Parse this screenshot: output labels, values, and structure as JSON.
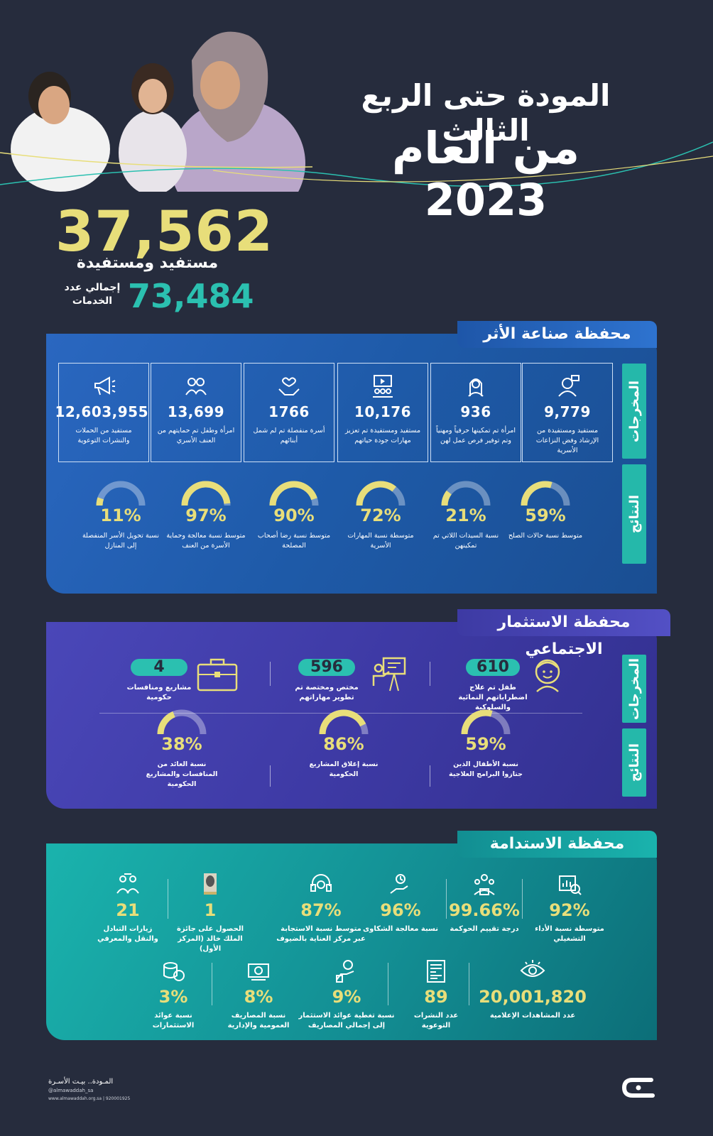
{
  "header": {
    "title_line1": "المودة حتى الربع الثالث",
    "title_line2": "من العام 2023"
  },
  "summary": {
    "beneficiaries_value": "37,562",
    "beneficiaries_label": "مستفيد ومستفيدة",
    "services_value": "73,484",
    "services_label_1": "إجمالي عدد",
    "services_label_2": "الخدمات"
  },
  "side": {
    "outputs": "المخرجات",
    "results": "النتائج"
  },
  "impact": {
    "title": "محفظة صناعة الأثر",
    "outputs": [
      {
        "value": "9,779",
        "label": "مستفيد ومستفيدة من الإرشاد وفض النزاعات الأسرية",
        "icon": "counselor-icon"
      },
      {
        "value": "936",
        "label": "امرأة تم تمكينها حرفياً ومهنياً وتم توفير فرص عمل لهن",
        "icon": "woman-icon"
      },
      {
        "value": "10,176",
        "label": "مستفيد ومستفيدة تم تعزيز مهارات جودة حياتهم",
        "icon": "training-icon"
      },
      {
        "value": "1766",
        "label": "أسرة منفصلة تم لم شمل أبنائهم",
        "icon": "hands-heart-icon"
      },
      {
        "value": "13,699",
        "label": "امرأة وطفل تم حمايتهم من العنف الأسري",
        "icon": "protection-icon"
      },
      {
        "value": "12,603,955",
        "label": "مستفيد من الحملات والنشرات التوعوية",
        "icon": "megaphone-icon"
      }
    ],
    "results": [
      {
        "value": "59%",
        "pct": 59,
        "label": "متوسط نسبة حالات الصلح"
      },
      {
        "value": "21%",
        "pct": 21,
        "label": "نسبة السيدات اللاتي تم تمكينهن"
      },
      {
        "value": "72%",
        "pct": 72,
        "label": "متوسطة نسبة المهارات الأسرية"
      },
      {
        "value": "90%",
        "pct": 90,
        "label": "متوسط نسبة رضا أصحاب المصلحة"
      },
      {
        "value": "97%",
        "pct": 97,
        "label": "متوسط نسبة معالجة وحماية الأسرة من العنف"
      },
      {
        "value": "11%",
        "pct": 11,
        "label": "نسبة تحويل الأسر المنفصلة إلى المنازل"
      }
    ]
  },
  "social": {
    "title": "محفظة الاستثمار الاجتماعي",
    "outputs": [
      {
        "value": "610",
        "label": "طفل تم علاج اضطراباتهم النمائية والسلوكية",
        "icon": "child-icon"
      },
      {
        "value": "596",
        "label": "مختص ومختصة تم تطوير مهاراتهم",
        "icon": "presenter-icon"
      },
      {
        "value": "4",
        "label": "مشاريع ومنافسات حكومية",
        "icon": "briefcase-icon"
      }
    ],
    "results": [
      {
        "value": "59%",
        "pct": 59,
        "label": "نسبة الأطفال الذين جتازوا البرامج العلاجية"
      },
      {
        "value": "86%",
        "pct": 86,
        "label": "نسبة إغلاق المشاريع الحكومية"
      },
      {
        "value": "38%",
        "pct": 38,
        "label": "نسبة العائد من المنافسات والمشاريع الحكومية"
      }
    ]
  },
  "sustain": {
    "title": "محفظة الاستدامة",
    "row1": [
      {
        "value": "92%",
        "label": "متوسطة نسبة الأداء التشغيلي",
        "icon": "performance-icon"
      },
      {
        "value": "99.66%",
        "label": "درجة تقييم الحوكمة",
        "icon": "governance-icon"
      },
      {
        "value": "96%",
        "label": "نسبة معالجة الشكاوى",
        "icon": "complaint-icon"
      },
      {
        "value": "87%",
        "label": "متوسط نسبة الاستجابة عبر مركز العناية بالضيوف",
        "icon": "headset-icon"
      },
      {
        "value": "1",
        "label": "الحصول على جائزة الملك خالد (المركز الأول)",
        "icon": "award-icon"
      },
      {
        "value": "21",
        "label": "زيارات التبادل والنقل والمعرفي",
        "icon": "exchange-icon"
      }
    ],
    "row2": [
      {
        "value": "20,001,820",
        "label": "عدد المشاهدات الإعلامية",
        "icon": "eye-icon"
      },
      {
        "value": "89",
        "label": "عدد النشرات التوعوية",
        "icon": "newsletter-icon"
      },
      {
        "value": "9%",
        "label": "نسبة تغطية عوائد الاستثمار إلى إجمالي المصاريف",
        "icon": "money-hand-icon"
      },
      {
        "value": "8%",
        "label": "نسبة المصاريف العمومية والإدارية",
        "icon": "cash-icon"
      },
      {
        "value": "3%",
        "label": "نسبة عوائد الاستثمارات",
        "icon": "coins-icon"
      }
    ]
  },
  "footer": {
    "brand": "المـودة.. بيـت الأسـرة",
    "handle": "@almawaddah_sa",
    "site": "www.almawaddah.org.sa | 920001925"
  },
  "colors": {
    "bg": "#262c3d",
    "yellow": "#e8de7a",
    "teal": "#2bc0b0",
    "impact": "#2a67c0",
    "social": "#4a47b8",
    "sustain": "#1ab3ad"
  }
}
